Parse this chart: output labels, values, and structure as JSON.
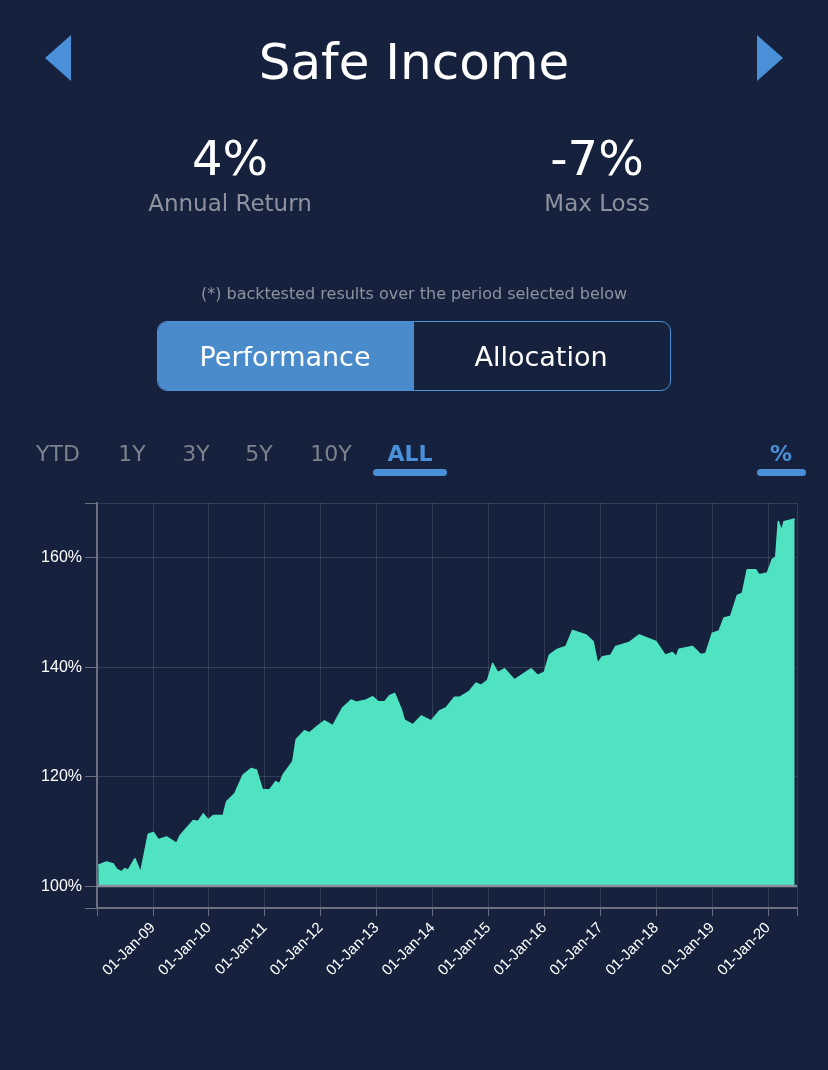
{
  "chart_data": {
    "type": "area",
    "title": "Safe Income",
    "annotations": [
      "4%",
      "Annual Return",
      "-7%",
      "Max Loss",
      "(*) backtested results over the period selected below",
      "Performance",
      "Allocation",
      "YTD",
      "1Y",
      "3Y",
      "5Y",
      "10Y",
      "ALL",
      "%"
    ],
    "x": [
      "2008-01-09",
      "2008-03-03",
      "2008-04-14",
      "2008-05-08",
      "2008-06-10",
      "2008-07-01",
      "2008-07-23",
      "2008-09-05",
      "2008-10-12",
      "2008-12-01",
      "2009-01-03",
      "2009-02-04",
      "2009-03-30",
      "2009-06-04",
      "2009-06-26",
      "2009-09-21",
      "2009-10-23",
      "2009-11-25",
      "2009-12-28",
      "2010-01-29",
      "2010-04-04",
      "2010-04-26",
      "2010-06-19",
      "2010-08-12",
      "2010-10-06",
      "2010-11-07",
      "2010-12-16",
      "2011-02-02",
      "2011-03-13",
      "2011-04-08",
      "2011-04-30",
      "2011-07-03",
      "2011-07-25",
      "2011-09-17",
      "2011-10-20",
      "2011-12-13",
      "2012-01-26",
      "2012-03-20",
      "2012-05-24",
      "2012-07-18",
      "2012-08-20",
      "2012-10-24",
      "2012-12-06",
      "2013-01-09",
      "2013-02-22",
      "2013-03-26",
      "2013-04-28",
      "2013-06-10",
      "2013-07-01",
      "2013-08-25",
      "2013-10-19",
      "2013-12-23",
      "2014-02-15",
      "2014-03-31",
      "2014-05-24",
      "2014-06-25",
      "2014-08-29",
      "2014-10-12",
      "2014-11-13",
      "2014-12-26",
      "2015-01-28",
      "2015-03-02",
      "2015-04-15",
      "2015-06-19",
      "2015-08-12",
      "2015-10-06",
      "2015-11-17",
      "2016-01-01",
      "2016-02-02",
      "2016-03-27",
      "2016-05-21",
      "2016-07-03",
      "2016-09-28",
      "2016-11-14",
      "2016-12-13",
      "2017-01-15",
      "2017-03-10",
      "2017-04-11",
      "2017-07-07",
      "2017-09-11",
      "2017-12-29",
      "2018-02-28",
      "2018-04-16",
      "2018-05-12",
      "2018-05-30",
      "2018-08-24",
      "2018-10-18",
      "2018-11-20",
      "2019-01-02",
      "2019-02-15",
      "2019-03-19",
      "2019-05-02",
      "2019-06-14",
      "2019-07-17",
      "2019-08-18",
      "2019-10-12",
      "2019-11-02",
      "2019-12-27",
      "2020-01-29",
      "2020-02-20",
      "2020-03-08",
      "2020-03-30",
      "2020-04-14",
      "2020-06-23"
    ],
    "series": [
      {
        "color": "#50e3c2",
        "values": [
          103.8,
          104.4,
          104.1,
          103.1,
          102.6,
          103.2,
          102.9,
          105,
          102.5,
          109.5,
          109.8,
          108.5,
          109,
          107.8,
          109.2,
          112,
          111.8,
          113.2,
          112.1,
          112.9,
          112.9,
          115.4,
          116.9,
          120.3,
          121.5,
          121.2,
          117.6,
          117.6,
          119.1,
          118.7,
          120.3,
          122.8,
          126.8,
          128.4,
          128,
          129.3,
          130.2,
          129.3,
          132.6,
          134,
          133.6,
          134,
          134.6,
          133.7,
          133.7,
          134.8,
          135.2,
          132.3,
          130.3,
          129.5,
          131.1,
          130.2,
          132,
          132.6,
          134.5,
          134.5,
          135.6,
          137.1,
          136.7,
          137.6,
          140.7,
          139,
          139.7,
          137.7,
          138.7,
          139.7,
          138.5,
          139.1,
          142.2,
          143.3,
          143.8,
          146.7,
          145.9,
          144.7,
          140.7,
          141.9,
          142.2,
          143.8,
          144.5,
          145.9,
          144.7,
          142.2,
          142.7,
          141.9,
          143.3,
          143.8,
          142.3,
          142.5,
          146.2,
          146.6,
          149,
          149.3,
          153.1,
          153.5,
          157.8,
          157.8,
          156.9,
          157.2,
          159.7,
          160.1,
          166.6,
          164.9,
          166.6,
          167.1
        ]
      }
    ],
    "xlim": [
      "2008-01-01",
      "2020-07-08"
    ],
    "xticks": [
      {
        "value": "2008-01-01",
        "label": null
      },
      {
        "value": "2009-01-01",
        "label": "01-Jan-09"
      },
      {
        "value": "2010-01-01",
        "label": "01-Jan-10"
      },
      {
        "value": "2011-01-01",
        "label": "01-Jan-11"
      },
      {
        "value": "2012-01-01",
        "label": "01-Jan-12"
      },
      {
        "value": "2013-01-01",
        "label": "01-Jan-13"
      },
      {
        "value": "2014-01-01",
        "label": "01-Jan-14"
      },
      {
        "value": "2015-01-01",
        "label": "01-Jan-15"
      },
      {
        "value": "2016-01-01",
        "label": "01-Jan-16"
      },
      {
        "value": "2017-01-01",
        "label": "01-Jan-17"
      },
      {
        "value": "2018-01-01",
        "label": "01-Jan-18"
      },
      {
        "value": "2019-01-01",
        "label": "01-Jan-19"
      },
      {
        "value": "2020-01-01",
        "label": "01-Jan-20"
      },
      {
        "value": "2020-07-08",
        "label": null
      }
    ],
    "ylim": [
      96,
      170
    ],
    "yticks": [
      {
        "value": 96,
        "label": null
      },
      {
        "value": 100,
        "label": "100%"
      },
      {
        "value": 120,
        "label": "120%"
      },
      {
        "value": 140,
        "label": "140%"
      },
      {
        "value": 160,
        "label": "160%"
      },
      {
        "value": 170,
        "label": null
      }
    ],
    "ref_lines": [
      {
        "axis": "y",
        "value": 100,
        "color": "#8a8e9c"
      }
    ],
    "grid": true
  }
}
